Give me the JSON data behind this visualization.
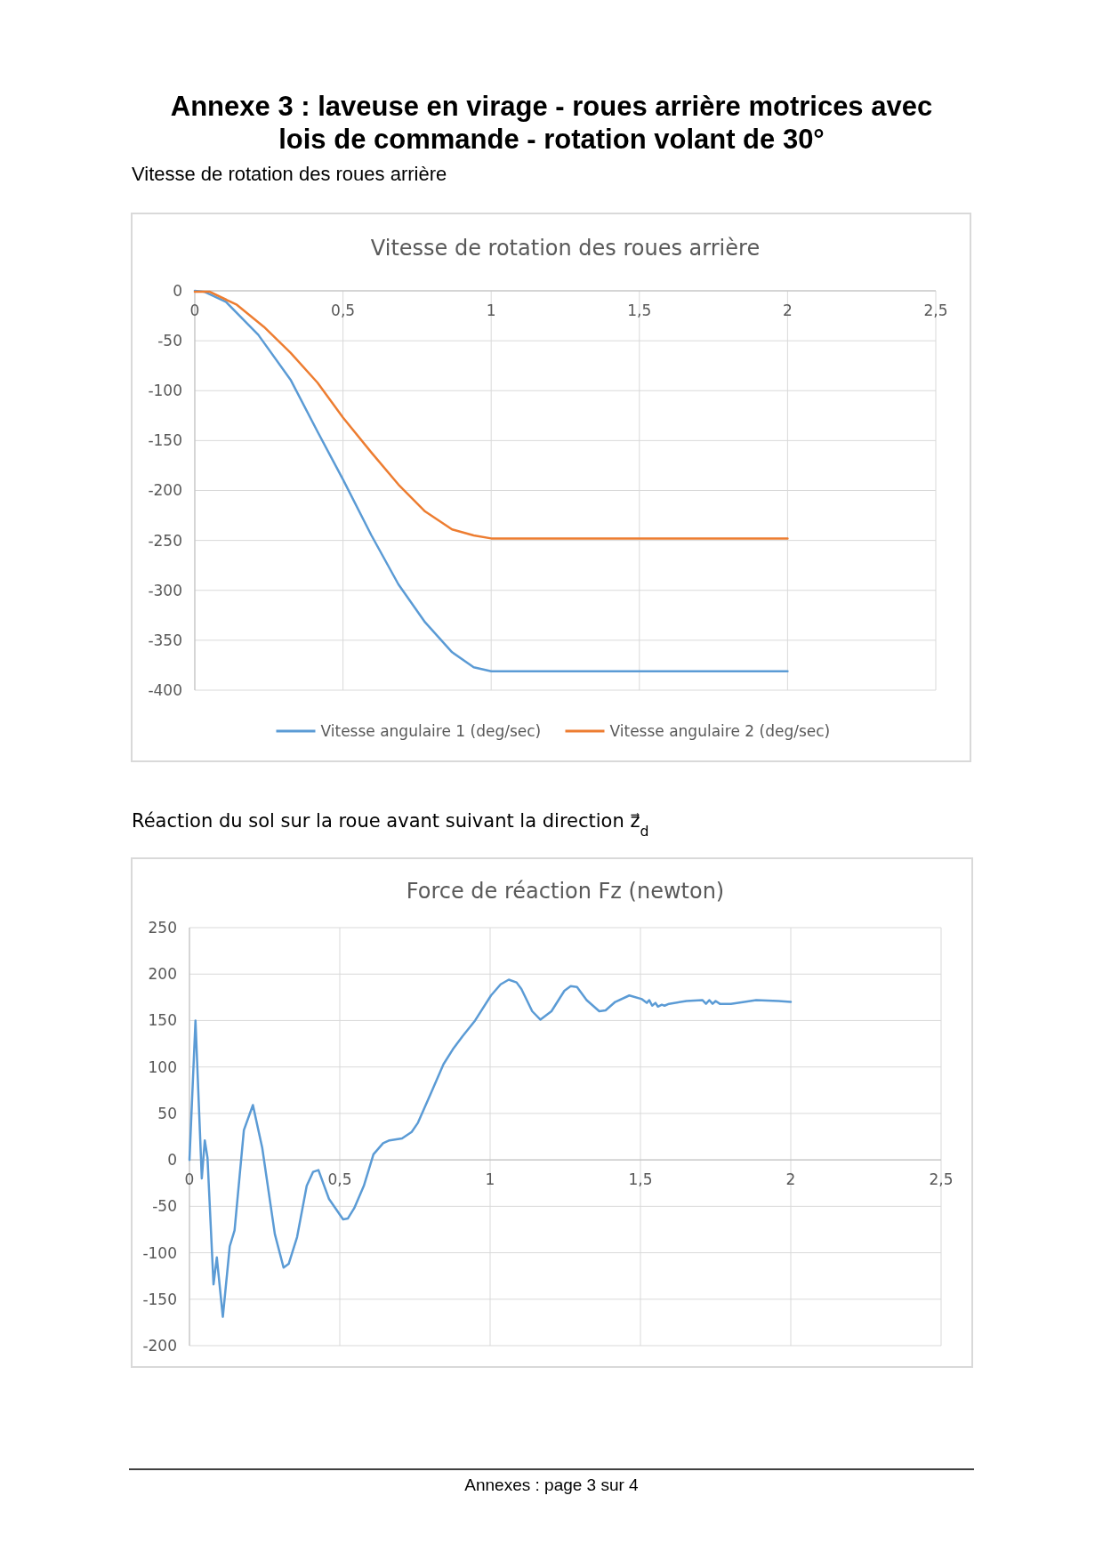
{
  "chart_data": [
    {
      "type": "line",
      "title": "Vitesse de rotation des roues arrière",
      "annotations": [
        "Annexe 3 : laveuse en virage - roues arrière motrices avec lois de commande - rotation volant de 30°",
        "Vitesse de rotation des roues arrière"
      ],
      "xlim": [
        0,
        2.5
      ],
      "xticks": [
        0,
        {
          "value": 0.5,
          "label": "0,5"
        },
        1,
        {
          "value": 1.5,
          "label": "1,5"
        },
        2,
        {
          "value": 2.5,
          "label": "2,5"
        }
      ],
      "ylim": [
        -400,
        0
      ],
      "yticks": [
        -400,
        -350,
        -300,
        -250,
        -200,
        -150,
        -100,
        -50,
        0
      ],
      "grid": true,
      "legend": "bottom",
      "marker": "none",
      "line_style": "solid",
      "series": [
        {
          "name": "Vitesse angulaire 1 (deg/sec)",
          "color": "#5b9bd5",
          "x": [
            0,
            0.033,
            0.105,
            0.214,
            0.323,
            0.414,
            0.5,
            0.596,
            0.687,
            0.777,
            0.868,
            0.941,
            1,
            2
          ],
          "values": [
            0,
            -1,
            -11,
            -44,
            -89,
            -141,
            -189,
            -245,
            -294,
            -332,
            -362,
            -377,
            -381,
            -381
          ]
        },
        {
          "name": "Vitesse angulaire 2 (deg/sec)",
          "color": "#ed7d31",
          "x": [
            0,
            0.051,
            0.142,
            0.233,
            0.323,
            0.414,
            0.5,
            0.596,
            0.687,
            0.777,
            0.868,
            0.941,
            1,
            2
          ],
          "values": [
            -1,
            -1,
            -14,
            -36,
            -62,
            -92,
            -127,
            -162,
            -194,
            -221,
            -239,
            -245,
            -248,
            -248
          ]
        }
      ]
    },
    {
      "type": "line",
      "title": "Force de réaction Fz (newton)",
      "annotations": [
        "Réaction du sol sur la roue avant suivant la direction z⃗$_{d}$",
        "Annexes : page 3 sur 4"
      ],
      "xlim": [
        0,
        2.5
      ],
      "xticks": [
        0,
        {
          "value": 0.5,
          "label": "0,5"
        },
        1,
        {
          "value": 1.5,
          "label": "1,5"
        },
        2,
        {
          "value": 2.5,
          "label": "2,5"
        }
      ],
      "ylim": [
        -200,
        250
      ],
      "yticks": [
        -200,
        -150,
        -100,
        -50,
        0,
        50,
        100,
        150,
        200,
        250
      ],
      "grid": true,
      "marker": "none",
      "line_style": "solid",
      "series": [
        {
          "color": "#5b9bd5",
          "x": [
            0,
            0.02,
            0.041,
            0.051,
            0.06,
            0.08,
            0.091,
            0.111,
            0.134,
            0.15,
            0.181,
            0.211,
            0.242,
            0.284,
            0.313,
            0.33,
            0.358,
            0.39,
            0.411,
            0.429,
            0.464,
            0.511,
            0.527,
            0.548,
            0.58,
            0.612,
            0.644,
            0.665,
            0.707,
            0.739,
            0.76,
            0.802,
            0.845,
            0.876,
            0.908,
            0.95,
            1.003,
            1.035,
            1.062,
            1.088,
            1.104,
            1.14,
            1.167,
            1.204,
            1.247,
            1.268,
            1.289,
            1.321,
            1.363,
            1.384,
            1.416,
            1.463,
            1.505,
            1.521,
            1.529,
            1.539,
            1.55,
            1.558,
            1.571,
            1.58,
            1.595,
            1.653,
            1.706,
            1.718,
            1.729,
            1.74,
            1.75,
            1.764,
            1.78,
            1.801,
            1.885,
            1.959,
            2.0
          ],
          "values": [
            0,
            150,
            -20,
            21,
            2,
            -134,
            -105,
            -169,
            -93,
            -76,
            32,
            59,
            13,
            -80,
            -116,
            -112,
            -83,
            -28,
            -13,
            -11,
            -42,
            -64,
            -63,
            -52,
            -28,
            6,
            18,
            21,
            23,
            30,
            40,
            71,
            103,
            119,
            133,
            150,
            177,
            189,
            194,
            191,
            184,
            160,
            151,
            160,
            182,
            187,
            186,
            172,
            160,
            161,
            170,
            177,
            173,
            169,
            172,
            166,
            169,
            165,
            167,
            166,
            168,
            171,
            172,
            168,
            172,
            168,
            171,
            168,
            168,
            168,
            172,
            171,
            170
          ]
        }
      ]
    }
  ]
}
